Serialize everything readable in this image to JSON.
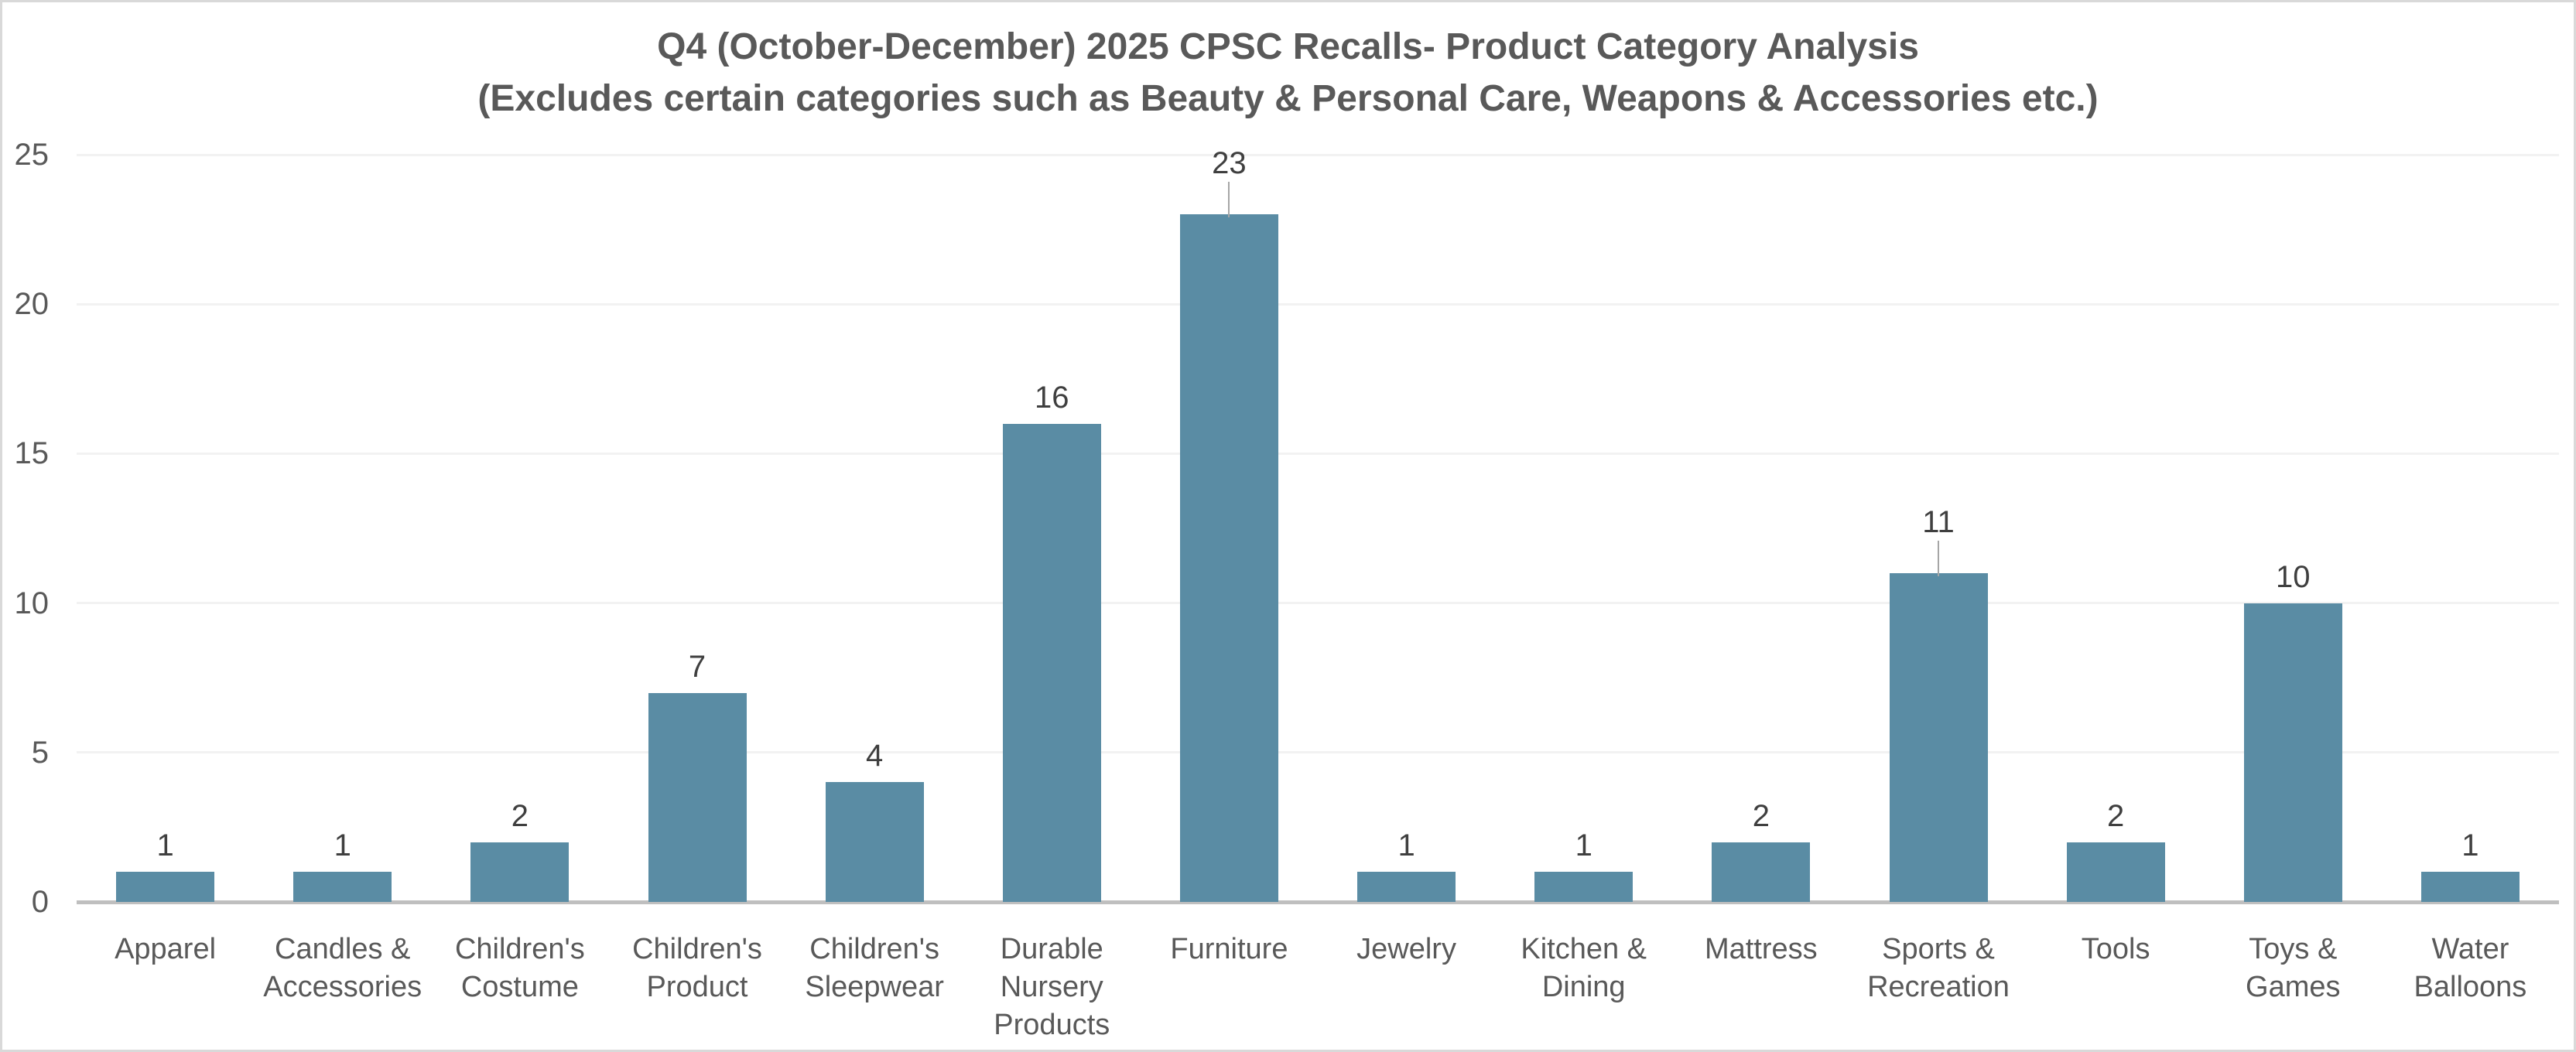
{
  "chart_data": {
    "type": "bar",
    "title": "Q4 (October-December) 2025 CPSC Recalls- Product Category Analysis",
    "subtitle": "(Excludes certain categories such as Beauty & Personal Care, Weapons & Accessories etc.)",
    "categories": [
      "Apparel",
      "Candles & Accessories",
      "Children's Costume",
      "Children's Product",
      "Children's Sleepwear",
      "Durable Nursery Products",
      "Furniture",
      "Jewelry",
      "Kitchen & Dining",
      "Mattress",
      "Sports & Recreation",
      "Tools",
      "Toys & Games",
      "Water Balloons"
    ],
    "values": [
      1,
      1,
      2,
      7,
      4,
      16,
      23,
      1,
      1,
      2,
      11,
      2,
      10,
      1
    ],
    "xlabel": "",
    "ylabel": "",
    "ylim": [
      0,
      25
    ],
    "yticks": [
      0,
      5,
      10,
      15,
      20,
      25
    ],
    "grid": true,
    "legend": "none",
    "data_labels": true,
    "leader_line_categories": [
      "Furniture",
      "Sports & Recreation"
    ]
  },
  "colors": {
    "bar": "#5A8CA4",
    "title_text": "#595959",
    "axis_text": "#595959",
    "data_label_text": "#3F3F3F",
    "gridline": "#F2F2F2",
    "axis_line": "#BFBFBF",
    "leader_line": "#A6A6A6",
    "border": "#D9D9D9",
    "background": "#FFFFFF"
  }
}
